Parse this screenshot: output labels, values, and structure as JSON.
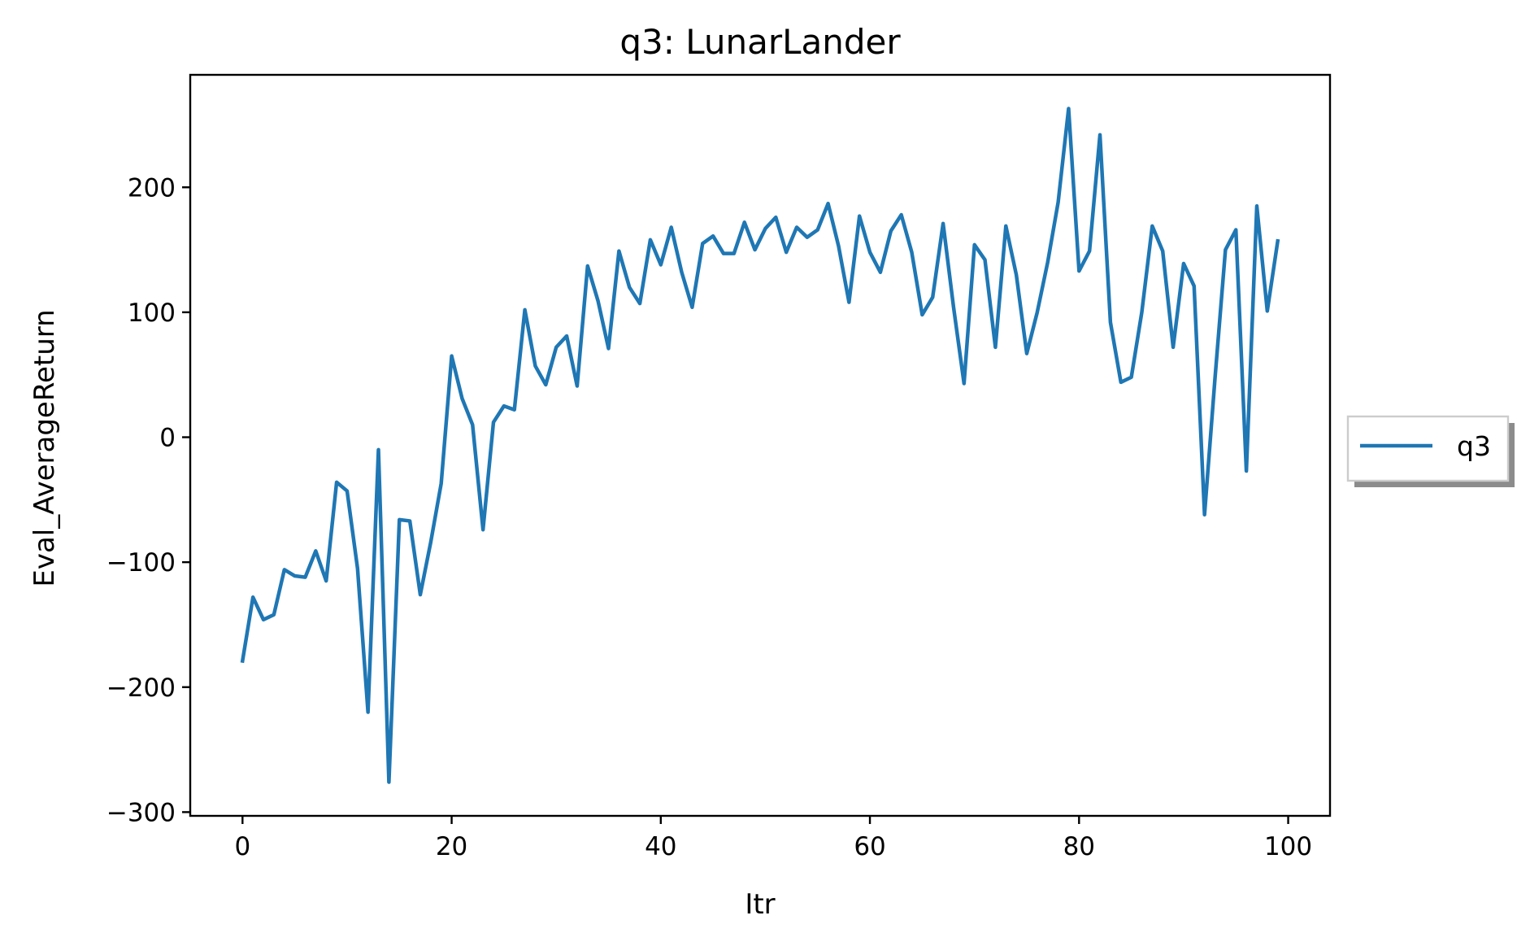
{
  "chart_data": {
    "type": "line",
    "title": "q3: LunarLander",
    "xlabel": "Itr",
    "ylabel": "Eval_AverageReturn",
    "xlim": [
      -5,
      104
    ],
    "ylim": [
      -303,
      290
    ],
    "xticks": [
      0,
      20,
      40,
      60,
      80,
      100
    ],
    "yticks": [
      -300,
      -200,
      -100,
      0,
      100,
      200
    ],
    "xtick_labels": [
      "0",
      "20",
      "40",
      "60",
      "80",
      "100"
    ],
    "ytick_labels": [
      "−300",
      "−200",
      "−100",
      "0",
      "100",
      "200"
    ],
    "grid": false,
    "legend_position": "center-right",
    "series": [
      {
        "name": "q3",
        "color": "#1f77b4",
        "x": [
          0,
          1,
          2,
          3,
          4,
          5,
          6,
          7,
          8,
          9,
          10,
          11,
          12,
          13,
          14,
          15,
          16,
          17,
          18,
          19,
          20,
          21,
          22,
          23,
          24,
          25,
          26,
          27,
          28,
          29,
          30,
          31,
          32,
          33,
          34,
          35,
          36,
          37,
          38,
          39,
          40,
          41,
          42,
          43,
          44,
          45,
          46,
          47,
          48,
          49,
          50,
          51,
          52,
          53,
          54,
          55,
          56,
          57,
          58,
          59,
          60,
          61,
          62,
          63,
          64,
          65,
          66,
          67,
          68,
          69,
          70,
          71,
          72,
          73,
          74,
          75,
          76,
          77,
          78,
          79,
          80,
          81,
          82,
          83,
          84,
          85,
          86,
          87,
          88,
          89,
          90,
          91,
          92,
          93,
          94,
          95,
          96,
          97,
          98,
          99
        ],
        "y": [
          -179,
          -128,
          -146,
          -142,
          -106,
          -111,
          -112,
          -91,
          -115,
          -36,
          -43,
          -105,
          -220,
          -10,
          -276,
          -66,
          -67,
          -126,
          -84,
          -37,
          65,
          31,
          10,
          -74,
          12,
          25,
          22,
          102,
          57,
          42,
          72,
          81,
          41,
          137,
          109,
          71,
          149,
          120,
          107,
          158,
          138,
          168,
          132,
          104,
          155,
          161,
          147,
          147,
          172,
          150,
          167,
          176,
          148,
          168,
          160,
          166,
          187,
          153,
          108,
          177,
          148,
          132,
          165,
          178,
          148,
          98,
          112,
          171,
          104,
          43,
          154,
          142,
          72,
          169,
          130,
          67,
          100,
          140,
          188,
          263,
          133,
          149,
          242,
          92,
          44,
          48,
          100,
          169,
          149,
          72,
          139,
          121,
          -62,
          47,
          150,
          166,
          -27,
          185,
          101,
          157
        ]
      }
    ]
  }
}
